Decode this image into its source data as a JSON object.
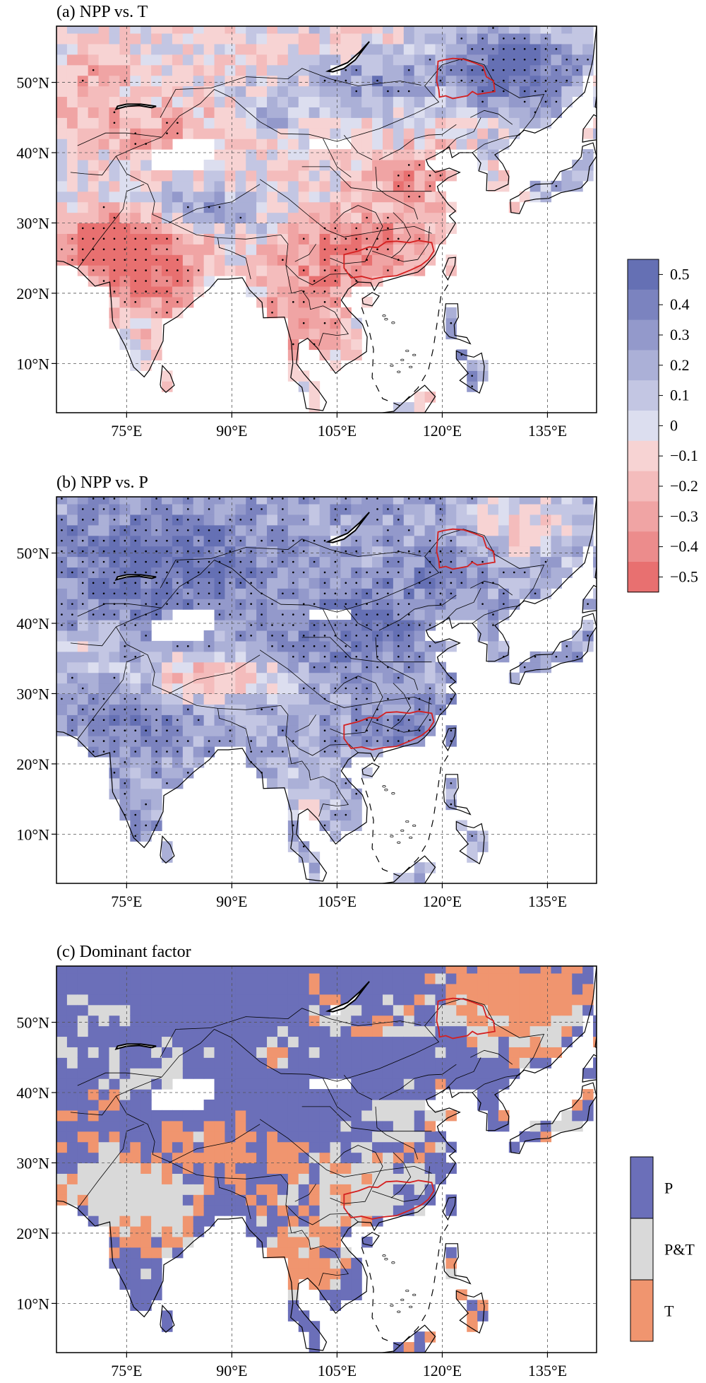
{
  "panels": [
    {
      "id": "a",
      "title": "(a) NPP vs. T",
      "variable": "T",
      "stippled": true
    },
    {
      "id": "b",
      "title": "(b) NPP vs. P",
      "variable": "P",
      "stippled": true
    },
    {
      "id": "c",
      "title": "(c) Dominant factor",
      "variable": "dominant",
      "stippled": false
    }
  ],
  "axes": {
    "lon_range": [
      65,
      142
    ],
    "lat_range": [
      3,
      58
    ],
    "lon_ticks": [
      75,
      90,
      105,
      120,
      135
    ],
    "lat_ticks": [
      10,
      20,
      30,
      40,
      50
    ],
    "lon_labels": [
      "75°E",
      "90°E",
      "105°E",
      "120°E",
      "135°E"
    ],
    "lat_labels": [
      "10°N",
      "20°N",
      "30°N",
      "40°N",
      "50°N"
    ],
    "grid": "dashed"
  },
  "correlation_colorbar": {
    "labels": [
      "0.5",
      "0.4",
      "0.3",
      "0.2",
      "0.1",
      "0",
      "−0.1",
      "−0.2",
      "−0.3",
      "−0.4",
      "−0.5"
    ],
    "colors": [
      "#6570b4",
      "#7b83bf",
      "#9399cb",
      "#abb0d7",
      "#c3c6e3",
      "#dcdeef",
      "#f7d3d3",
      "#f4bcbc",
      "#f0a4a4",
      "#ec8c8c",
      "#e87070"
    ]
  },
  "dominant_legend": {
    "labels": [
      "P",
      "P&T",
      "T"
    ],
    "colors": [
      "#6b6fb9",
      "#d9d9d9",
      "#f0956f"
    ]
  },
  "colors": {
    "study_region_outline": "#d42020",
    "coastline": "#000000",
    "stipple": "#000000"
  },
  "chart_data": {
    "type": "heatmap",
    "panels": [
      "(a) NPP vs. T",
      "(b) NPP vs. P",
      "(c) Dominant factor"
    ],
    "x_range_deg_east": [
      65,
      142
    ],
    "y_range_deg_north": [
      3,
      58
    ],
    "correlation_scale": [
      -0.5,
      0.5
    ],
    "categories": [
      "P",
      "P&T",
      "T"
    ]
  }
}
